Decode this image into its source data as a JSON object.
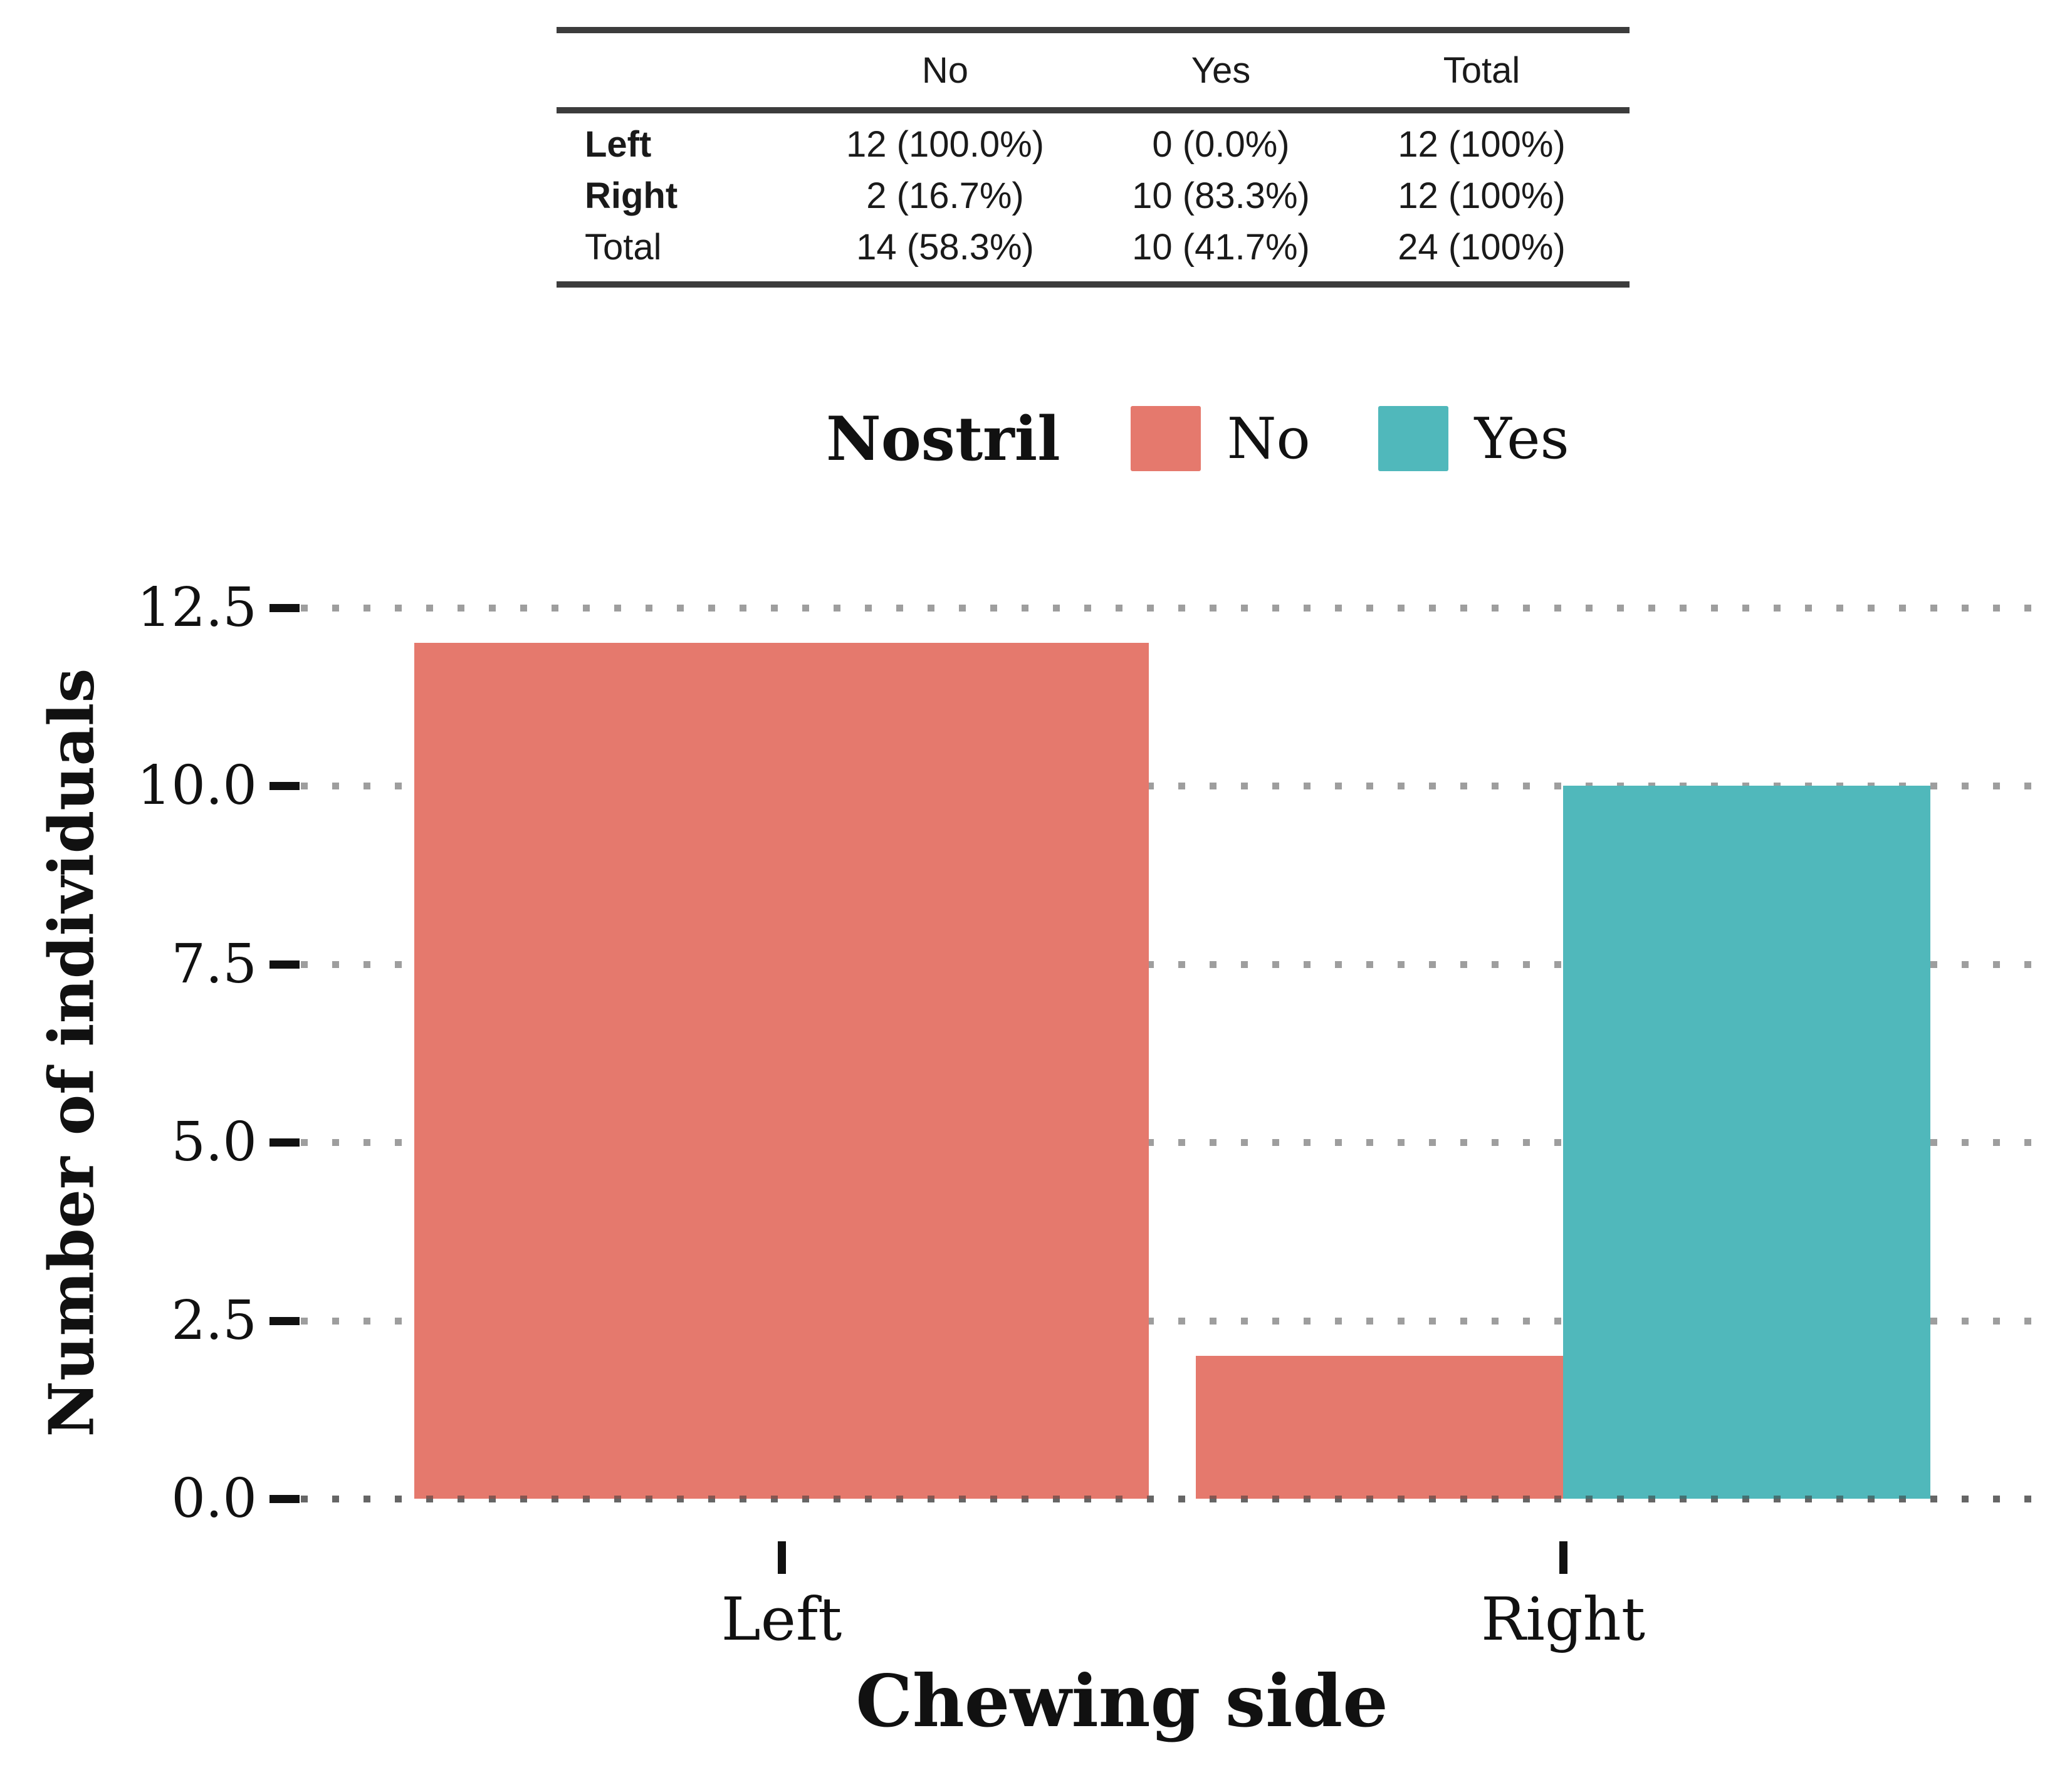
{
  "table": {
    "column_headers": [
      "No",
      "Yes",
      "Total"
    ],
    "rows": [
      {
        "label": "Left",
        "bold": true,
        "cells": [
          "12 (100.0%)",
          "0 (0.0%)",
          "12 (100%)"
        ]
      },
      {
        "label": "Right",
        "bold": true,
        "cells": [
          "2 (16.7%)",
          "10 (83.3%)",
          "12 (100%)"
        ]
      },
      {
        "label": "Total",
        "bold": false,
        "cells": [
          "14 (58.3%)",
          "10 (41.7%)",
          "24 (100%)"
        ]
      }
    ]
  },
  "legend": {
    "title": "Nostril",
    "entries": [
      {
        "label": "No",
        "color": "#E5796D"
      },
      {
        "label": "Yes",
        "color": "#50B8BB"
      }
    ],
    "position": "top-center"
  },
  "chart_data": {
    "type": "bar",
    "bar_mode": "dodge",
    "title": "",
    "xlabel": "Chewing side",
    "ylabel": "Number of individuals",
    "categories": [
      "Left",
      "Right"
    ],
    "series": [
      {
        "name": "No",
        "color": "#E5796D",
        "values": [
          12,
          2
        ]
      },
      {
        "name": "Yes",
        "color": "#50B8BB",
        "values": [
          0,
          10
        ]
      }
    ],
    "yticks": [
      0,
      2.5,
      5,
      7.5,
      10,
      12.5
    ],
    "ytick_labels": [
      "0.0",
      "2.5",
      "5.0",
      "7.5",
      "10.0",
      "12.5"
    ],
    "xtick_labels": [
      "Left",
      "Right"
    ],
    "ylim": [
      0,
      13.1
    ],
    "grid": "horizontal-dotted",
    "legend_position": "top-center"
  },
  "colors": {
    "salmon": "#E5796D",
    "teal": "#50B8BB",
    "grid_dot": "#9E9E9E",
    "axis_tick": "#111111",
    "table_rule": "#3C3C3C",
    "text": "#111111",
    "background": "#FFFFFF"
  }
}
